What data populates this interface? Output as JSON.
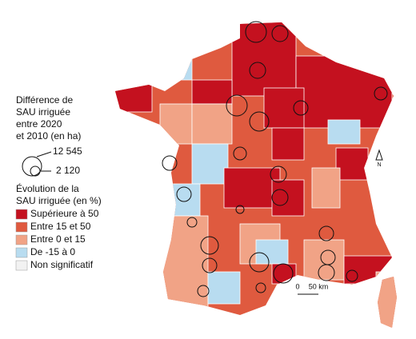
{
  "legend": {
    "size_title": [
      "Différence de",
      "SAU irriguée",
      "entre 2020",
      "et 2010 (en ha)"
    ],
    "size_labels": [
      "12 545",
      "2 120"
    ],
    "color_title": [
      "Évolution de la",
      "SAU irriguée (en %)"
    ],
    "items": [
      {
        "label": "Supérieure à 50",
        "color": "#c4111f"
      },
      {
        "label": "Entre 15 et 50",
        "color": "#df5a3f"
      },
      {
        "label": "Entre 0 et 15",
        "color": "#f1a386"
      },
      {
        "label": "De -15 à 0",
        "color": "#b8dcf0"
      },
      {
        "label": "Non significatif",
        "color": "#f2f2f2"
      }
    ]
  },
  "scale": {
    "start": "0",
    "end": "50 km"
  },
  "north": "N"
}
